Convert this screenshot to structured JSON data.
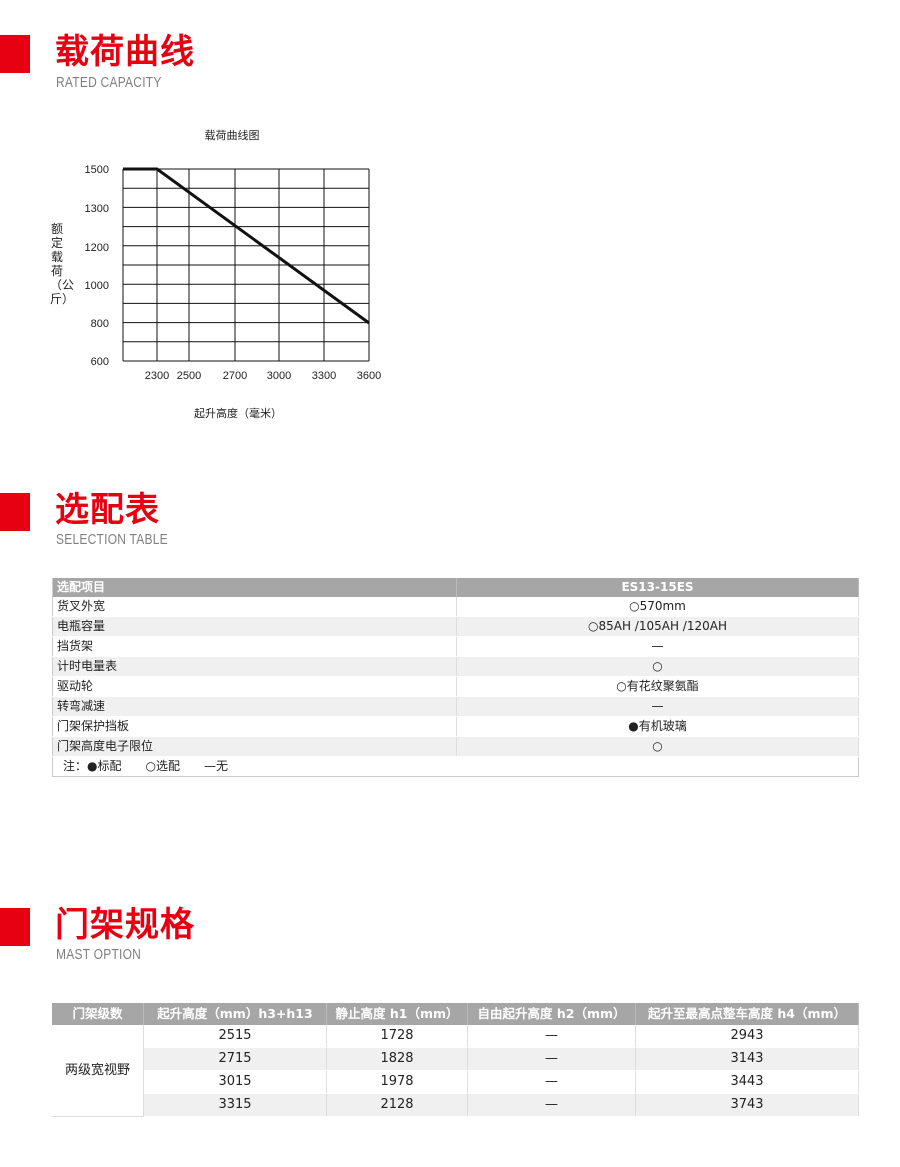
{
  "sections": {
    "capacity": {
      "title": "载荷曲线",
      "subtitle": "RATED CAPACITY"
    },
    "selection": {
      "title": "选配表",
      "subtitle": "SELECTION TABLE"
    },
    "mast": {
      "title": "门架规格",
      "subtitle": "MAST OPTION"
    }
  },
  "colors": {
    "accent": "#e60012",
    "header_bg": "#a6a6a6",
    "row_alt": "#f0f0f0"
  },
  "chart_data": {
    "type": "line",
    "title": "载荷曲线图",
    "xlabel": "起升高度（毫米）",
    "ylabel": "额定载荷（公斤）",
    "x_ticks": [
      "2300",
      "2500",
      "2700",
      "3000",
      "3300",
      "3600"
    ],
    "y_ticks": [
      "1500",
      "1300",
      "1200",
      "1000",
      "800",
      "600"
    ],
    "grid": true,
    "series": [
      {
        "points": [
          {
            "x": 2300,
            "y": 1500
          },
          {
            "x": 3600,
            "y": 800
          }
        ],
        "flat_before_first": true
      }
    ]
  },
  "selection_table": {
    "headers": [
      "选配项目",
      "ES13-15ES"
    ],
    "rows": [
      [
        "货叉外宽",
        "○570mm"
      ],
      [
        "电瓶容量",
        "○85AH /105AH /120AH"
      ],
      [
        "挡货架",
        "—"
      ],
      [
        "计时电量表",
        "○"
      ],
      [
        "驱动轮",
        "○有花纹聚氨酯"
      ],
      [
        "转弯减速",
        "—"
      ],
      [
        "门架保护挡板",
        "●有机玻璃"
      ],
      [
        "门架高度电子限位",
        "○"
      ]
    ],
    "note": "注：●标配　　○选配　　—无"
  },
  "mast_table": {
    "headers": [
      "门架级数",
      "起升高度（mm）h3+h13",
      "静止高度 h1（mm）",
      "自由起升高度 h2（mm）",
      "起升至最高点整车高度 h4（mm）"
    ],
    "group": "两级宽视野",
    "rows": [
      [
        "2515",
        "1728",
        "—",
        "2943"
      ],
      [
        "2715",
        "1828",
        "—",
        "3143"
      ],
      [
        "3015",
        "1978",
        "—",
        "3443"
      ],
      [
        "3315",
        "2128",
        "—",
        "3743"
      ]
    ]
  }
}
